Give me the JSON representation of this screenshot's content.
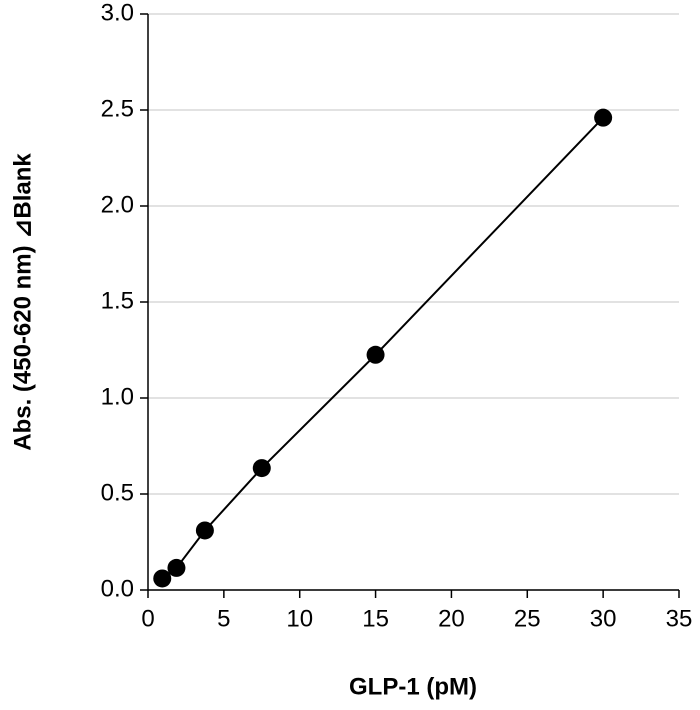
{
  "chart_data": {
    "type": "scatter",
    "xlabel": "GLP-1 (pM)",
    "ylabel": "Abs. (450-620 nm) ⊿Blank",
    "x": [
      0.94,
      1.875,
      3.75,
      7.5,
      15,
      30
    ],
    "series": [
      {
        "color": "#000000",
        "values": [
          0.06,
          0.115,
          0.31,
          0.635,
          1.225,
          2.46
        ]
      }
    ],
    "line": true,
    "xlim": [
      0,
      35
    ],
    "xticks": [
      0,
      5,
      10,
      15,
      20,
      25,
      30,
      35
    ],
    "ylim": [
      0,
      3
    ],
    "yticks": [
      {
        "value": 0,
        "label": "0.0"
      },
      0.5,
      {
        "value": 1,
        "label": "1.0"
      },
      1.5,
      {
        "value": 2,
        "label": "2.0"
      },
      2.5,
      {
        "value": 3,
        "label": "3.0"
      }
    ],
    "grid": true
  }
}
